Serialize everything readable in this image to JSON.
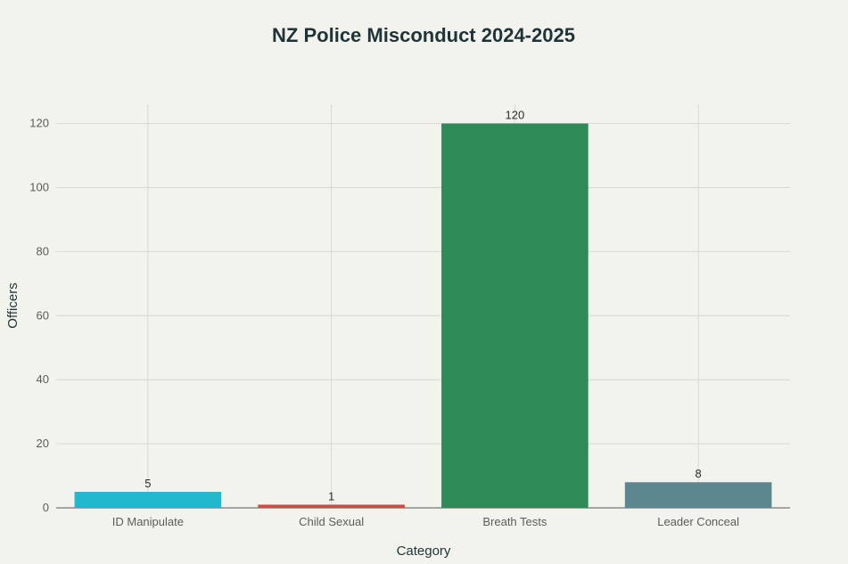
{
  "chart_data": {
    "type": "bar",
    "title": "NZ Police Misconduct 2024-2025",
    "xlabel": "Category",
    "ylabel": "Officers",
    "categories": [
      "ID Manipulate",
      "Child Sexual",
      "Breath Tests",
      "Leader Conceal"
    ],
    "values": [
      5,
      1,
      120,
      8
    ],
    "data_labels": [
      "5",
      "1",
      "120",
      "8"
    ],
    "colors": [
      "#1fb8cd",
      "#db4545",
      "#2e8b57",
      "#5d878f"
    ],
    "ylim": [
      0,
      126
    ],
    "yticks": [
      0,
      20,
      40,
      60,
      80,
      100,
      120
    ],
    "grid": true,
    "legend": "none"
  }
}
